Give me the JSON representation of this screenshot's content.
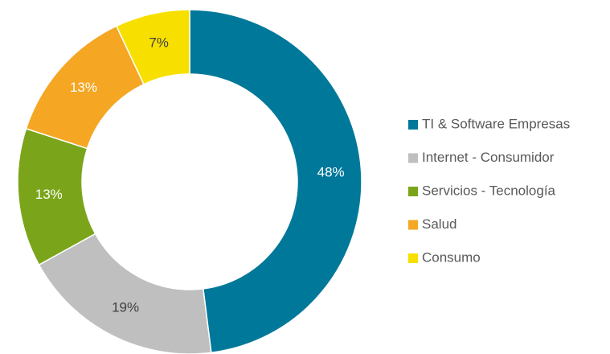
{
  "chart_data": {
    "type": "donut",
    "categories": [
      "TI & Software Empresas",
      "Internet - Consumidor",
      "Servicios - Tecnología",
      "Salud",
      "Consumo"
    ],
    "values": [
      48,
      19,
      13,
      13,
      7
    ],
    "value_labels": [
      "48%",
      "19%",
      "13%",
      "13%",
      "7%"
    ],
    "colors": [
      "#00789a",
      "#bfbfbf",
      "#7aa51a",
      "#f5a623",
      "#f7e000"
    ],
    "legend": "right"
  }
}
